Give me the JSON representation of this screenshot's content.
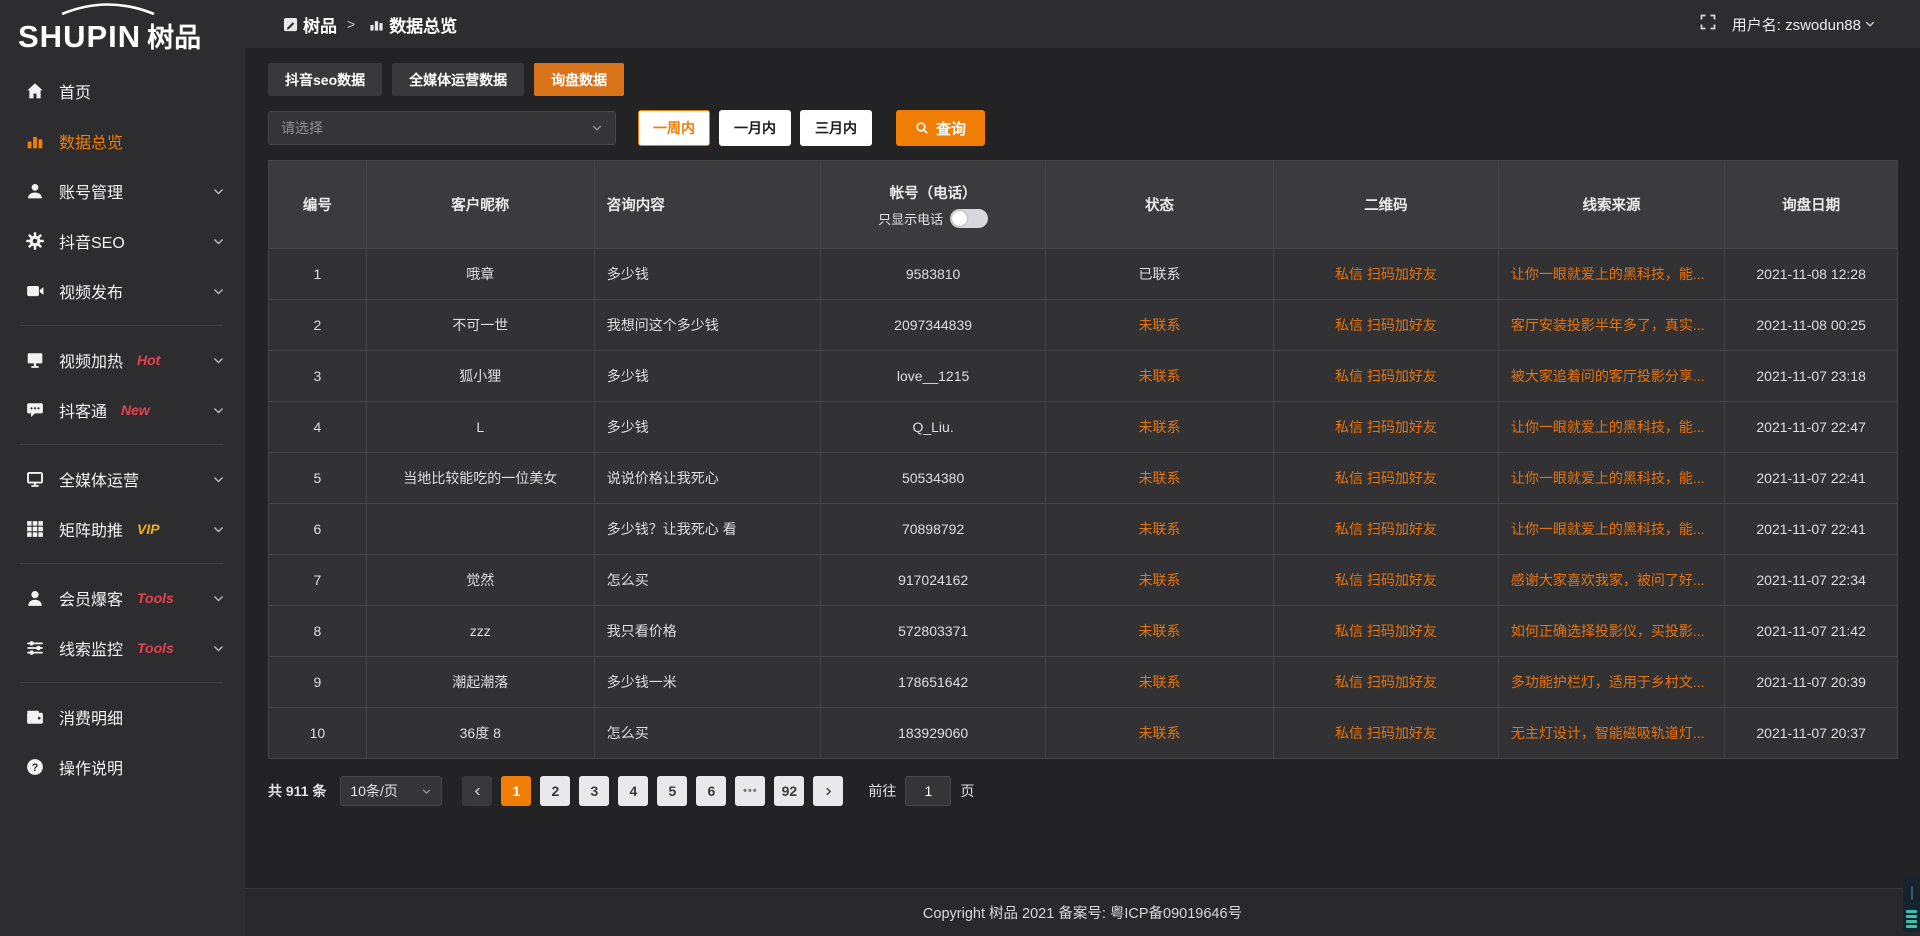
{
  "colors": {
    "accent_orange": "#f07e04",
    "tab_active_orange": "#d9731a",
    "link_orange": "#e8720c",
    "badge_red": "#e8414d",
    "badge_gold": "#efaf1e",
    "widget_teal": "#37c4ad"
  },
  "logo": {
    "latin": "SHUPIN",
    "cn": "树品"
  },
  "topbar": {
    "breadcrumb_root": "树品",
    "breadcrumb_sep": ">",
    "breadcrumb_current": "数据总览",
    "user_label": "用户名: zswodun88"
  },
  "sidebar": {
    "items": [
      {
        "label": "首页",
        "icon": "home"
      },
      {
        "label": "数据总览",
        "icon": "chart",
        "active": true
      },
      {
        "label": "账号管理",
        "icon": "user",
        "chevron": true
      },
      {
        "label": "抖音SEO",
        "icon": "gear",
        "chevron": true
      },
      {
        "label": "视频发布",
        "icon": "video",
        "chevron": true
      },
      {
        "divider": true
      },
      {
        "label": "视频加热",
        "icon": "heat",
        "badge": {
          "text": "Hot",
          "color": "red"
        },
        "chevron": true
      },
      {
        "label": "抖客通",
        "icon": "chat",
        "badge": {
          "text": "New",
          "color": "red"
        },
        "chevron": true
      },
      {
        "divider": true
      },
      {
        "label": "全媒体运营",
        "icon": "monitor",
        "chevron": true
      },
      {
        "label": "矩阵助推",
        "icon": "grid",
        "badge": {
          "text": "VIP",
          "color": "gold"
        },
        "chevron": true
      },
      {
        "divider": true
      },
      {
        "label": "会员爆客",
        "icon": "person",
        "badge": {
          "text": "Tools",
          "color": "red"
        },
        "chevron": true
      },
      {
        "label": "线索监控",
        "icon": "sliders",
        "badge": {
          "text": "Tools",
          "color": "red"
        },
        "chevron": true
      },
      {
        "divider": true
      },
      {
        "label": "消费明细",
        "icon": "wallet"
      },
      {
        "label": "操作说明",
        "icon": "help"
      }
    ]
  },
  "tabs": [
    {
      "label": "抖音seo数据",
      "active": false
    },
    {
      "label": "全媒体运营数据",
      "active": false
    },
    {
      "label": "询盘数据",
      "active": true
    }
  ],
  "filters": {
    "select_placeholder": "请选择",
    "periods": [
      {
        "label": "一周内",
        "active": true
      },
      {
        "label": "一月内",
        "active": false
      },
      {
        "label": "三月内",
        "active": false
      }
    ],
    "query_label": "查询"
  },
  "table": {
    "columns": [
      "编号",
      "客户昵称",
      "咨询内容",
      "帐号（电话）",
      "状态",
      "二维码",
      "线索来源",
      "询盘日期"
    ],
    "account_toggle_label": "只显示电话",
    "col_widths": [
      "6%",
      "14%",
      "13.9%",
      "13.8%",
      "14%",
      "13.8%",
      "13.9%",
      "10.6%"
    ],
    "rows": [
      {
        "no": "1",
        "nickname": "哦章",
        "content": "多少钱",
        "account": "9583810",
        "status": "已联系",
        "contacted": true,
        "qr": "私信 扫码加好友",
        "source": "让你一眼就爱上的黑科技，能...",
        "date": "2021-11-08 12:28"
      },
      {
        "no": "2",
        "nickname": "不可一世",
        "content": "我想问这个多少钱",
        "account": "2097344839",
        "status": "未联系",
        "contacted": false,
        "qr": "私信 扫码加好友",
        "source": "客厅安装投影半年多了，真实...",
        "date": "2021-11-08 00:25"
      },
      {
        "no": "3",
        "nickname": "狐小狸",
        "content": "多少钱",
        "account": "love__1215",
        "status": "未联系",
        "contacted": false,
        "qr": "私信 扫码加好友",
        "source": "被大家追着问的客厅投影分享...",
        "date": "2021-11-07 23:18"
      },
      {
        "no": "4",
        "nickname": "L",
        "content": "多少钱",
        "account": "Q_Liu.",
        "status": "未联系",
        "contacted": false,
        "qr": "私信 扫码加好友",
        "source": "让你一眼就爱上的黑科技，能...",
        "date": "2021-11-07 22:47"
      },
      {
        "no": "5",
        "nickname": "当地比较能吃的一位美女",
        "content": "说说价格让我死心",
        "account": "50534380",
        "status": "未联系",
        "contacted": false,
        "qr": "私信 扫码加好友",
        "source": "让你一眼就爱上的黑科技，能...",
        "date": "2021-11-07 22:41"
      },
      {
        "no": "6",
        "nickname": "",
        "content": "多少钱？让我死心 看",
        "account": "70898792",
        "status": "未联系",
        "contacted": false,
        "qr": "私信 扫码加好友",
        "source": "让你一眼就爱上的黑科技，能...",
        "date": "2021-11-07 22:41"
      },
      {
        "no": "7",
        "nickname": "觉然",
        "content": "怎么买",
        "account": "917024162",
        "status": "未联系",
        "contacted": false,
        "qr": "私信 扫码加好友",
        "source": "感谢大家喜欢我家，被问了好...",
        "date": "2021-11-07 22:34"
      },
      {
        "no": "8",
        "nickname": "zzz",
        "content": "我只看价格",
        "account": "572803371",
        "status": "未联系",
        "contacted": false,
        "qr": "私信 扫码加好友",
        "source": "如何正确选择投影仪，买投影...",
        "date": "2021-11-07 21:42"
      },
      {
        "no": "9",
        "nickname": "潮起潮落",
        "content": "多少钱一米",
        "account": "178651642",
        "status": "未联系",
        "contacted": false,
        "qr": "私信 扫码加好友",
        "source": "多功能护栏灯，适用于乡村文...",
        "date": "2021-11-07 20:39"
      },
      {
        "no": "10",
        "nickname": "36度 8",
        "content": "怎么买",
        "account": "183929060",
        "status": "未联系",
        "contacted": false,
        "qr": "私信 扫码加好友",
        "source": "无主灯设计，智能磁吸轨道灯...",
        "date": "2021-11-07 20:37"
      }
    ]
  },
  "pagination": {
    "total": "共 911 条",
    "page_size": "10条/页",
    "pages": [
      "1",
      "2",
      "3",
      "4",
      "5",
      "6",
      "•••",
      "92"
    ],
    "active_page": "1",
    "goto_label": "前往",
    "goto_value": "1",
    "goto_suffix": "页"
  },
  "footer": {
    "copyright": "Copyright 树品 2021 备案号: 粤ICP备09019646号"
  }
}
